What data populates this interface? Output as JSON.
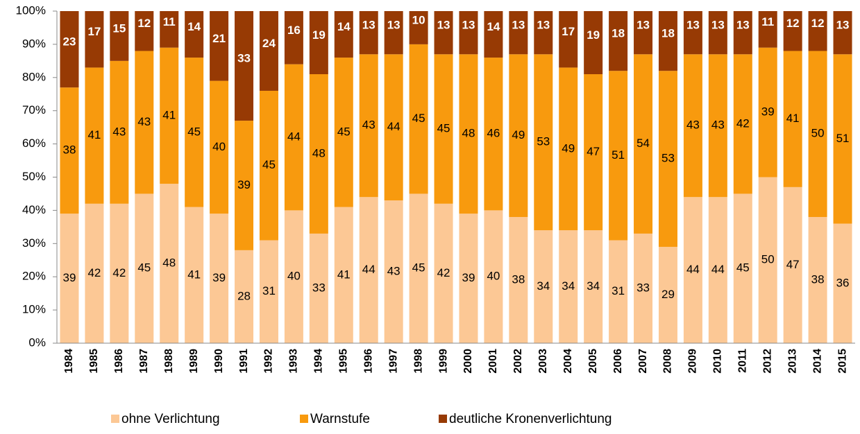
{
  "chart_data": {
    "type": "stacked_bar",
    "categories": [
      "1984",
      "1985",
      "1986",
      "1987",
      "1988",
      "1989",
      "1990",
      "1991",
      "1992",
      "1993",
      "1994",
      "1995",
      "1996",
      "1997",
      "1998",
      "1999",
      "2000",
      "2001",
      "2002",
      "2003",
      "2004",
      "2005",
      "2006",
      "2007",
      "2008",
      "2009",
      "2010",
      "2011",
      "2012",
      "2013",
      "2014",
      "2015"
    ],
    "series": [
      {
        "name": "ohne Verlichtung",
        "color": "#fcc895",
        "values": [
          39,
          42,
          42,
          45,
          48,
          41,
          39,
          28,
          31,
          40,
          33,
          41,
          44,
          43,
          45,
          42,
          39,
          40,
          38,
          34,
          34,
          34,
          31,
          33,
          29,
          44,
          44,
          45,
          50,
          47,
          38,
          36
        ]
      },
      {
        "name": "Warnstufe",
        "color": "#f89a0e",
        "values": [
          38,
          41,
          43,
          43,
          41,
          45,
          40,
          39,
          45,
          44,
          48,
          45,
          43,
          44,
          45,
          45,
          48,
          46,
          49,
          53,
          49,
          47,
          51,
          54,
          53,
          43,
          43,
          42,
          39,
          41,
          50,
          51
        ]
      },
      {
        "name": "deutliche Kronenverlichtung",
        "color": "#973a04",
        "values": [
          23,
          17,
          15,
          12,
          11,
          14,
          21,
          33,
          24,
          16,
          19,
          14,
          13,
          13,
          10,
          13,
          13,
          14,
          13,
          13,
          17,
          19,
          18,
          13,
          18,
          13,
          13,
          13,
          11,
          12,
          12,
          13
        ]
      }
    ],
    "ylim": [
      0,
      100
    ],
    "yticks": [
      {
        "value": 0,
        "label": "0%"
      },
      {
        "value": 10,
        "label": "10%"
      },
      {
        "value": 20,
        "label": "20%"
      },
      {
        "value": 30,
        "label": "30%"
      },
      {
        "value": 40,
        "label": "40%"
      },
      {
        "value": 50,
        "label": "50%"
      },
      {
        "value": 60,
        "label": "60%"
      },
      {
        "value": 70,
        "label": "70%"
      },
      {
        "value": 80,
        "label": "80%"
      },
      {
        "value": 90,
        "label": "90%"
      },
      {
        "value": 100,
        "label": "100%"
      }
    ]
  }
}
